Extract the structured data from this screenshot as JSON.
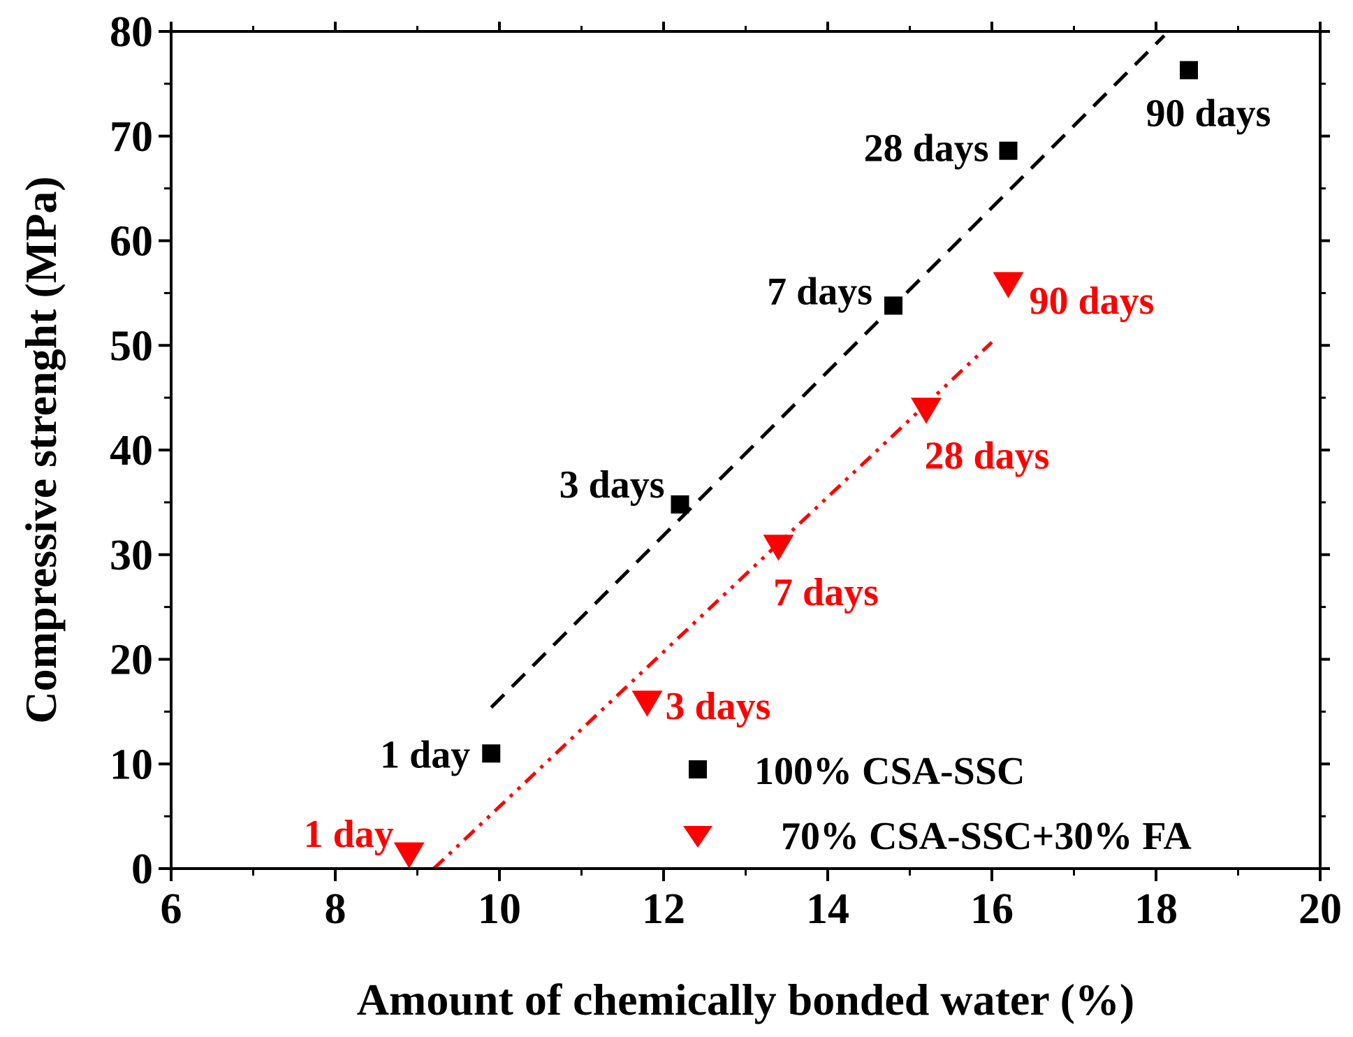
{
  "chart_data": {
    "type": "scatter",
    "title": "",
    "xlabel": "Amount of chemically bonded water (%)",
    "ylabel": "Compressive strenght (MPa)",
    "xlim": [
      6,
      20
    ],
    "ylim": [
      0,
      80
    ],
    "xticks": [
      6,
      8,
      10,
      12,
      14,
      16,
      18,
      20
    ],
    "yticks": [
      0,
      10,
      20,
      30,
      40,
      50,
      60,
      70,
      80
    ],
    "grid": false,
    "legend_position": "bottom-right",
    "series": [
      {
        "name": "100% CSA-SSC",
        "marker": "square",
        "color": "#000000",
        "points": [
          {
            "x": 9.9,
            "y": 11.0,
            "label": "1 day"
          },
          {
            "x": 12.2,
            "y": 34.8,
            "label": "3 days"
          },
          {
            "x": 14.8,
            "y": 53.8,
            "label": "7 days"
          },
          {
            "x": 16.2,
            "y": 68.6,
            "label": "28 days"
          },
          {
            "x": 18.4,
            "y": 76.3,
            "label": "90 days"
          }
        ],
        "fit_line": {
          "style": "dashed",
          "x": [
            9.9,
            18.1
          ],
          "y": [
            15.4,
            79.6
          ]
        }
      },
      {
        "name": "70% CSA-SSC+30% FA",
        "marker": "triangle-down",
        "color": "#ff0000",
        "points": [
          {
            "x": 8.9,
            "y": 1.4,
            "label": "1 day"
          },
          {
            "x": 11.8,
            "y": 15.9,
            "label": "3 days"
          },
          {
            "x": 13.4,
            "y": 30.8,
            "label": "7 days"
          },
          {
            "x": 15.2,
            "y": 43.9,
            "label": "28 days"
          },
          {
            "x": 16.2,
            "y": 55.9,
            "label": "90 days"
          }
        ],
        "fit_line": {
          "style": "dash-dot-dot",
          "x": [
            9.2,
            16.0
          ],
          "y": [
            0,
            50.3
          ]
        }
      }
    ]
  }
}
